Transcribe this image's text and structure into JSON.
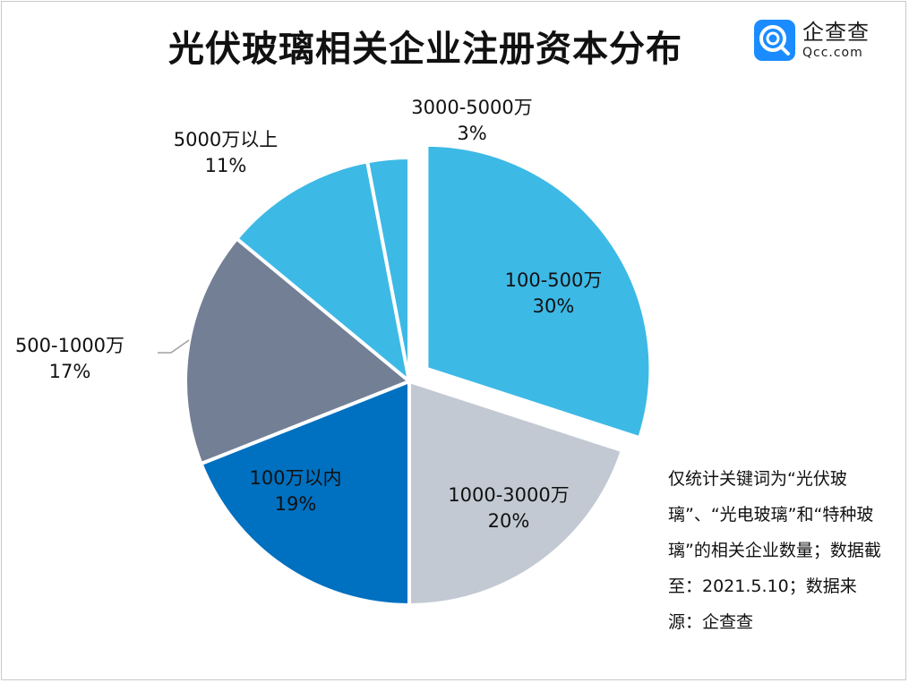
{
  "title": "光伏玻璃相关企业注册资本分布",
  "logo": {
    "cn": "企查查",
    "en": "Qcc.com",
    "color": "#1a8cff"
  },
  "note": "仅统计关键词为“光伏玻璃”、“光电玻璃”和“特种玻璃”的相关企业数量；数据截至：2021.5.10；数据来源：企查查",
  "chart_data": {
    "type": "pie",
    "title": "光伏玻璃相关企业注册资本分布",
    "slices": [
      {
        "label": "100-500万",
        "value": 30,
        "pct": "30%",
        "color": "#3db9e6"
      },
      {
        "label": "1000-3000万",
        "value": 20,
        "pct": "20%",
        "color": "#c2c9d3"
      },
      {
        "label": "100万以内",
        "value": 19,
        "pct": "19%",
        "color": "#0070c0"
      },
      {
        "label": "500-1000万",
        "value": 17,
        "pct": "17%",
        "color": "#737f94"
      },
      {
        "label": "5000万以上",
        "value": 11,
        "pct": "11%",
        "color": "#3db9e6"
      },
      {
        "label": "3000-5000万",
        "value": 3,
        "pct": "3%",
        "color": "#3db9e6"
      }
    ]
  }
}
